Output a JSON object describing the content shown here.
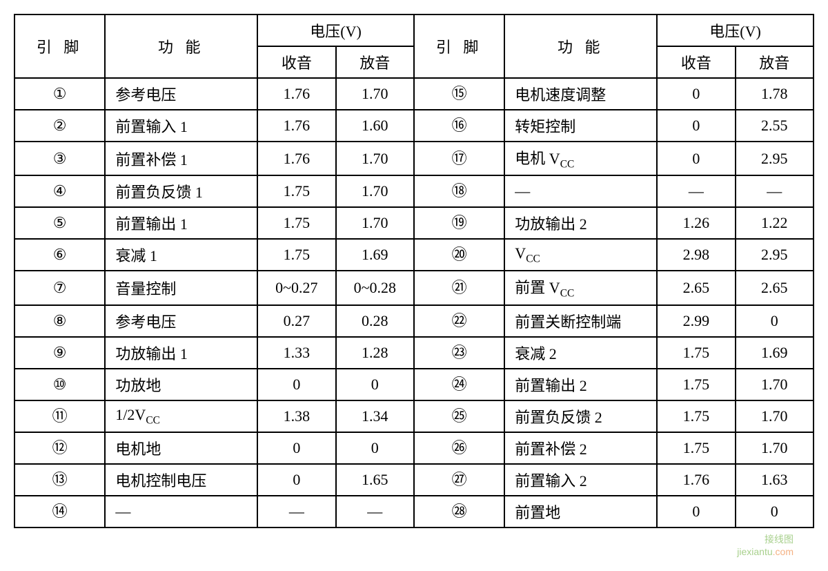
{
  "headers": {
    "pin": "引 脚",
    "func": "功  能",
    "voltage": "电压(V)",
    "rx": "收音",
    "play": "放音"
  },
  "circled": [
    "①",
    "②",
    "③",
    "④",
    "⑤",
    "⑥",
    "⑦",
    "⑧",
    "⑨",
    "⑩",
    "⑪",
    "⑫",
    "⑬",
    "⑭",
    "⑮",
    "⑯",
    "⑰",
    "⑱",
    "⑲",
    "⑳",
    "㉑",
    "㉒",
    "㉓",
    "㉔",
    "㉕",
    "㉖",
    "㉗",
    "㉘"
  ],
  "left_rows": [
    {
      "func": "参考电压",
      "rx": "1.76",
      "play": "1.70"
    },
    {
      "func": "前置输入 1",
      "rx": "1.76",
      "play": "1.60"
    },
    {
      "func": "前置补偿 1",
      "rx": "1.76",
      "play": "1.70"
    },
    {
      "func": "前置负反馈 1",
      "rx": "1.75",
      "play": "1.70"
    },
    {
      "func": "前置输出 1",
      "rx": "1.75",
      "play": "1.70"
    },
    {
      "func": "衰减 1",
      "rx": "1.75",
      "play": "1.69"
    },
    {
      "func": "音量控制",
      "rx": "0~0.27",
      "play": "0~0.28"
    },
    {
      "func": "参考电压",
      "rx": "0.27",
      "play": "0.28"
    },
    {
      "func": "功放输出 1",
      "rx": "1.33",
      "play": "1.28"
    },
    {
      "func": "功放地",
      "rx": "0",
      "play": "0"
    },
    {
      "func_html": "1/2V<span class=\"sub\">CC</span>",
      "rx": "1.38",
      "play": "1.34"
    },
    {
      "func": "电机地",
      "rx": "0",
      "play": "0"
    },
    {
      "func": "电机控制电压",
      "rx": "0",
      "play": "1.65"
    },
    {
      "func": "—",
      "rx": "—",
      "play": "—"
    }
  ],
  "right_rows": [
    {
      "func": "电机速度调整",
      "rx": "0",
      "play": "1.78"
    },
    {
      "func": "转矩控制",
      "rx": "0",
      "play": "2.55"
    },
    {
      "func_html": "电机 V<span class=\"sub\">CC</span>",
      "rx": "0",
      "play": "2.95"
    },
    {
      "func": "—",
      "rx": "—",
      "play": "—"
    },
    {
      "func": "功放输出 2",
      "rx": "1.26",
      "play": "1.22"
    },
    {
      "func_html": "V<span class=\"sub\">CC</span>",
      "rx": "2.98",
      "play": "2.95"
    },
    {
      "func_html": "前置 V<span class=\"sub\">CC</span>",
      "rx": "2.65",
      "play": "2.65"
    },
    {
      "func": "前置关断控制端",
      "rx": "2.99",
      "play": "0"
    },
    {
      "func": "衰减 2",
      "rx": "1.75",
      "play": "1.69"
    },
    {
      "func": "前置输出 2",
      "rx": "1.75",
      "play": "1.70"
    },
    {
      "func": "前置负反馈 2",
      "rx": "1.75",
      "play": "1.70"
    },
    {
      "func": "前置补偿 2",
      "rx": "1.75",
      "play": "1.70"
    },
    {
      "func": "前置输入 2",
      "rx": "1.76",
      "play": "1.63"
    },
    {
      "func": "前置地",
      "rx": "0",
      "play": "0"
    }
  ],
  "colwidths": {
    "pin": 110,
    "func": 185,
    "val": 95
  },
  "colors": {
    "border": "#000000",
    "bg": "#ffffff",
    "text": "#000000"
  },
  "watermark": {
    "line1": "接线图",
    "line2a": "jiexiantu",
    "line2b": ".com"
  }
}
